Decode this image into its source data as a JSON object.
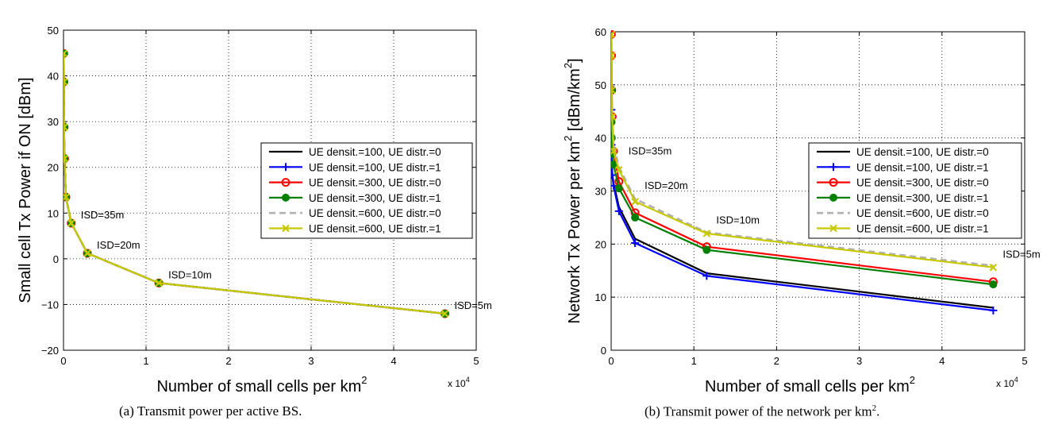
{
  "chart_data": [
    {
      "type": "line",
      "id": "a",
      "caption": "(a) Transmit power per active BS.",
      "xlabel": "Number of small cells per km",
      "xlabel_sup": "2",
      "ylabel": "Small cell Tx Power if ON [dBm]",
      "x_multiplier": "x 10",
      "x_multiplier_sup": "4",
      "xlim": [
        0,
        5
      ],
      "ylim": [
        -20,
        50
      ],
      "xticks": [
        0,
        1,
        2,
        3,
        4,
        5
      ],
      "yticks": [
        -20,
        -10,
        0,
        10,
        20,
        30,
        40,
        50
      ],
      "ytick_labels": [
        "−20",
        "−10",
        "0",
        "10",
        "20",
        "30",
        "40",
        "50"
      ],
      "grid": true,
      "legend_position": "center-right",
      "annotations": [
        {
          "text": "ISD=35m",
          "x": 0.094,
          "y": 7.8
        },
        {
          "text": "ISD=20m",
          "x": 0.289,
          "y": 1.2
        },
        {
          "text": "ISD=10m",
          "x": 1.155,
          "y": -5.3
        },
        {
          "text": "ISD=5m",
          "x": 4.62,
          "y": -12.0
        }
      ],
      "x": [
        0.0029,
        0.0046,
        0.0072,
        0.0128,
        0.029,
        0.094,
        0.289,
        1.155,
        4.62
      ],
      "series": [
        {
          "name": "UE densit.=100, UE distr.=0",
          "color": "#000000",
          "marker": "none",
          "dash": false,
          "values": [
            44.9,
            38.7,
            28.8,
            21.9,
            13.5,
            7.8,
            1.2,
            -5.3,
            -12.0
          ]
        },
        {
          "name": "UE densit.=100, UE distr.=1",
          "color": "#0000ff",
          "marker": "plus",
          "dash": false,
          "values": [
            44.9,
            38.7,
            28.8,
            21.9,
            13.5,
            7.8,
            1.2,
            -5.3,
            -12.0
          ]
        },
        {
          "name": "UE densit.=300, UE distr.=0",
          "color": "#ff0000",
          "marker": "circle-open",
          "dash": false,
          "values": [
            44.9,
            38.7,
            28.8,
            21.9,
            13.5,
            7.8,
            1.2,
            -5.3,
            -12.0
          ]
        },
        {
          "name": "UE densit.=300, UE distr.=1",
          "color": "#008000",
          "marker": "circle-filled",
          "dash": false,
          "values": [
            44.9,
            38.7,
            28.8,
            21.9,
            13.5,
            7.8,
            1.2,
            -5.3,
            -12.0
          ]
        },
        {
          "name": "UE densit.=600, UE distr.=0",
          "color": "#b0b0b0",
          "marker": "none",
          "dash": true,
          "values": [
            44.9,
            38.7,
            28.8,
            21.9,
            13.5,
            7.8,
            1.2,
            -5.3,
            -12.0
          ]
        },
        {
          "name": "UE densit.=600, UE distr.=1",
          "color": "#c8c800",
          "marker": "x",
          "dash": false,
          "values": [
            44.9,
            38.7,
            28.8,
            21.9,
            13.5,
            7.8,
            1.2,
            -5.3,
            -12.0
          ]
        }
      ]
    },
    {
      "type": "line",
      "id": "b",
      "caption": "(b) Transmit power of the network per km",
      "caption_sup": "2",
      "caption_end": ".",
      "xlabel": "Number of small cells per km",
      "xlabel_sup": "2",
      "ylabel": "Network Tx Power per km",
      "ylabel_sup": "2",
      "ylabel_rest": " [dBm/km",
      "ylabel_rest_sup": "2",
      "ylabel_end": "]",
      "x_multiplier": "x 10",
      "x_multiplier_sup": "4",
      "xlim": [
        0,
        5
      ],
      "ylim": [
        0,
        60
      ],
      "xticks": [
        0,
        1,
        2,
        3,
        4,
        5
      ],
      "yticks": [
        0,
        10,
        20,
        30,
        40,
        50,
        60
      ],
      "ytick_labels": [
        "0",
        "10",
        "20",
        "30",
        "40",
        "50",
        "60"
      ],
      "grid": true,
      "legend_position": "top-right",
      "annotations": [
        {
          "text": "ISD=35m",
          "x": 0.094,
          "y": 36.0
        },
        {
          "text": "ISD=20m",
          "x": 0.289,
          "y": 29.5
        },
        {
          "text": "ISD=10m",
          "x": 1.155,
          "y": 23.0
        },
        {
          "text": "ISD=5m",
          "x": 4.62,
          "y": 16.5
        }
      ],
      "x": [
        0.0029,
        0.0046,
        0.0072,
        0.0128,
        0.029,
        0.094,
        0.289,
        1.155,
        4.62
      ],
      "series": [
        {
          "name": "UE densit.=100, UE distr.=0",
          "color": "#000000",
          "marker": "none",
          "dash": false,
          "values": [
            44.5,
            40.0,
            36.0,
            33.5,
            31.5,
            27.0,
            21.0,
            14.5,
            8.0
          ]
        },
        {
          "name": "UE densit.=100, UE distr.=1",
          "color": "#0000ff",
          "marker": "plus",
          "dash": false,
          "values": [
            45.3,
            38.7,
            35.5,
            33.0,
            31.0,
            26.2,
            20.2,
            14.0,
            7.5
          ]
        },
        {
          "name": "UE densit.=300, UE distr.=0",
          "color": "#ff0000",
          "marker": "circle-open",
          "dash": false,
          "values": [
            59.5,
            55.5,
            49.0,
            44.0,
            37.5,
            31.8,
            25.9,
            19.5,
            12.9
          ]
        },
        {
          "name": "UE densit.=300, UE distr.=1",
          "color": "#008000",
          "marker": "circle-filled",
          "dash": false,
          "values": [
            49.0,
            43.0,
            40.0,
            37.0,
            35.0,
            30.5,
            25.0,
            18.9,
            12.4
          ]
        },
        {
          "name": "UE densit.=600, UE distr.=0",
          "color": "#b0b0b0",
          "marker": "none",
          "dash": true,
          "values": [
            59.8,
            55.8,
            49.5,
            44.0,
            38.5,
            34.5,
            28.5,
            22.2,
            15.9
          ]
        },
        {
          "name": "UE densit.=600, UE distr.=1",
          "color": "#c8c800",
          "marker": "x",
          "dash": false,
          "values": [
            59.5,
            55.5,
            49.0,
            44.0,
            37.5,
            34.0,
            28.0,
            22.0,
            15.6
          ]
        }
      ]
    }
  ]
}
